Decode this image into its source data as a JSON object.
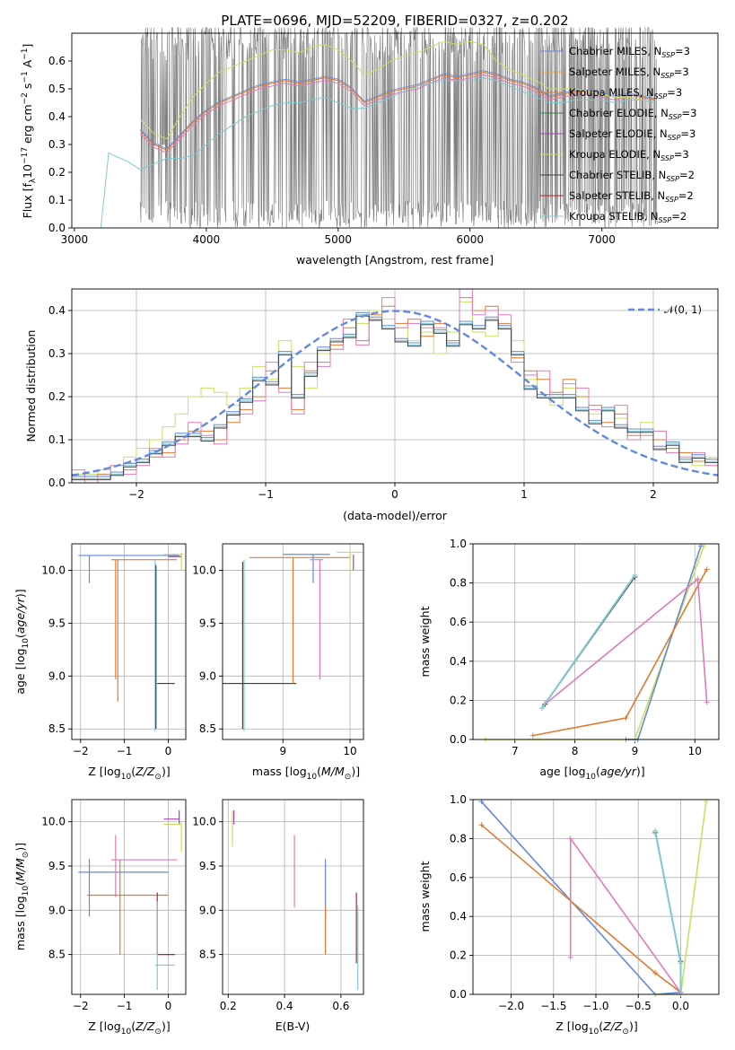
{
  "figure_title": "PLATE=0696, MJD=52209, FIBERID=0327, z=0.202",
  "colors": {
    "Chabrier MILES": "#6488e0",
    "Salpeter MILES": "#e4a030",
    "Kroupa MILES": "#e07a30",
    "Chabrier ELODIE": "#3a8a3a",
    "Salpeter ELODIE": "#a040c0",
    "Kroupa ELODIE": "#c8e060",
    "Chabrier STELIB": "#404040",
    "Salpeter STELIB": "#c02020",
    "Kroupa STELIB": "#80c8d0",
    "Pink": "#e27ab8",
    "data": "#808080"
  },
  "chart_data": [
    {
      "type": "line",
      "title": "PLATE=0696, MJD=52209, FIBERID=0327, z=0.202",
      "xlabel": "wavelength [Angstrom, rest frame]",
      "ylabel": "Flux [f",
      "xlim": [
        2980,
        7880
      ],
      "ylim": [
        0,
        0.7
      ],
      "xticks": [
        "3000",
        "4000",
        "5000",
        "6000",
        "7000"
      ],
      "yticks": [
        "0.0",
        "0.1",
        "0.2",
        "0.3",
        "0.4",
        "0.5",
        "0.6"
      ],
      "legend_position": "top-right",
      "series": [
        {
          "name": "Chabrier MILES, N$_{SSP}$=3",
          "label_main": "Chabrier MILES, N",
          "sub": "SSP",
          "suffix": "=3"
        },
        {
          "name": "Salpeter MILES, N$_{SSP}$=3",
          "label_main": "Salpeter MILES, N",
          "sub": "SSP",
          "suffix": "=3"
        },
        {
          "name": "Kroupa MILES, N$_{SSP}$=3",
          "label_main": "Kroupa MILES, N",
          "sub": "SSP",
          "suffix": "=3"
        },
        {
          "name": "Chabrier ELODIE, N$_{SSP}$=3",
          "label_main": "Chabrier ELODIE, N",
          "sub": "SSP",
          "suffix": "=3"
        },
        {
          "name": "Salpeter ELODIE, N$_{SSP}$=3",
          "label_main": "Salpeter ELODIE, N",
          "sub": "SSP",
          "suffix": "=3"
        },
        {
          "name": "Kroupa ELODIE, N$_{SSP}$=3",
          "label_main": "Kroupa ELODIE, N",
          "sub": "SSP",
          "suffix": "=3"
        },
        {
          "name": "Chabrier STELIB, N$_{SSP}$=2",
          "label_main": "Chabrier STELIB, N",
          "sub": "SSP",
          "suffix": "=2"
        },
        {
          "name": "Salpeter STELIB, N$_{SSP}$=2",
          "label_main": "Salpeter STELIB, N",
          "sub": "SSP",
          "suffix": "=2"
        },
        {
          "name": "Kroupa STELIB, N$_{SSP}$=2",
          "label_main": "Kroupa STELIB, N",
          "sub": "SSP",
          "suffix": "=2"
        }
      ],
      "model_curves": {
        "x": [
          3500,
          3600,
          3700,
          3800,
          3900,
          4000,
          4100,
          4200,
          4300,
          4400,
          4500,
          4600,
          4700,
          4800,
          4900,
          5000,
          5100,
          5200,
          5300,
          5400,
          5500,
          5600,
          5700,
          5800,
          5900,
          6000,
          6100,
          6200,
          6300,
          6400,
          6500,
          6600,
          6700,
          6800,
          6900,
          7000,
          7100,
          7200,
          7300,
          7400
        ],
        "milesish": [
          0.35,
          0.3,
          0.28,
          0.33,
          0.38,
          0.42,
          0.45,
          0.47,
          0.49,
          0.51,
          0.52,
          0.53,
          0.52,
          0.53,
          0.54,
          0.53,
          0.5,
          0.45,
          0.47,
          0.49,
          0.5,
          0.51,
          0.53,
          0.55,
          0.54,
          0.55,
          0.56,
          0.55,
          0.53,
          0.52,
          0.5,
          0.47,
          0.48,
          0.49,
          0.49,
          0.48,
          0.47,
          0.48,
          0.47,
          0.46
        ],
        "kroupa_elodie": [
          0.39,
          0.34,
          0.32,
          0.4,
          0.47,
          0.52,
          0.56,
          0.58,
          0.6,
          0.62,
          0.64,
          0.64,
          0.63,
          0.65,
          0.66,
          0.64,
          0.6,
          0.55,
          0.57,
          0.6,
          0.62,
          0.63,
          0.65,
          0.67,
          0.66,
          0.67,
          0.66,
          0.6,
          0.57,
          0.55,
          0.53,
          0.5,
          0.5,
          0.5,
          0.49,
          0.48,
          0.47,
          0.47,
          0.46,
          0.45
        ],
        "stelib_blue": {
          "x": [
            3200,
            3260,
            3300,
            3400,
            3500,
            3600,
            3700,
            3800,
            3900,
            4000,
            4100,
            4200,
            4300,
            4400,
            4500,
            4600,
            4700,
            4800,
            4900,
            5000,
            5100,
            5200,
            5300,
            5400,
            5500,
            5600,
            5700,
            5800,
            5900,
            6000,
            6100,
            6200,
            6300,
            6400,
            6500,
            6600,
            6700,
            6800,
            6900,
            7000,
            7100,
            7200,
            7300,
            7400
          ],
          "y": [
            0.0,
            0.27,
            0.26,
            0.24,
            0.21,
            0.23,
            0.25,
            0.25,
            0.26,
            0.3,
            0.34,
            0.37,
            0.4,
            0.42,
            0.44,
            0.45,
            0.45,
            0.46,
            0.47,
            0.45,
            0.43,
            0.43,
            0.45,
            0.47,
            0.49,
            0.51,
            0.52,
            0.53,
            0.53,
            0.53,
            0.54,
            0.53,
            0.51,
            0.49,
            0.47,
            0.45,
            0.45,
            0.46,
            0.46,
            0.46,
            0.45,
            0.46,
            0.46,
            0.45
          ]
        }
      }
    },
    {
      "type": "line",
      "xlabel": "(data-model)/error",
      "ylabel": "Normed distribution",
      "xlim": [
        -2.5,
        2.5
      ],
      "ylim": [
        0,
        0.45
      ],
      "xticks": [
        "−2",
        "−1",
        "0",
        "1",
        "2"
      ],
      "yticks": [
        "0.0",
        "0.1",
        "0.2",
        "0.3",
        "0.4"
      ],
      "legend": "𝒩(0, 1)",
      "bin_width": 0.1,
      "hist_a": [
        0.02,
        0.02,
        0.03,
        0.04,
        0.06,
        0.08,
        0.1,
        0.13,
        0.16,
        0.2,
        0.22,
        0.21,
        0.18,
        0.22,
        0.27,
        0.24,
        0.33,
        0.27,
        0.22,
        0.3,
        0.31,
        0.34,
        0.37,
        0.4,
        0.38,
        0.36,
        0.33,
        0.35,
        0.3,
        0.35,
        0.42,
        0.35,
        0.34,
        0.36,
        0.33,
        0.24,
        0.2,
        0.18,
        0.22,
        0.2,
        0.16,
        0.17,
        0.15,
        0.1,
        0.14,
        0.12,
        0.08,
        0.07,
        0.04,
        0.06
      ],
      "hist_b": [
        0.01,
        0.01,
        0.02,
        0.02,
        0.03,
        0.05,
        0.06,
        0.07,
        0.1,
        0.12,
        0.12,
        0.1,
        0.14,
        0.17,
        0.2,
        0.26,
        0.22,
        0.17,
        0.26,
        0.28,
        0.32,
        0.36,
        0.33,
        0.39,
        0.41,
        0.37,
        0.38,
        0.34,
        0.37,
        0.33,
        0.43,
        0.4,
        0.41,
        0.37,
        0.29,
        0.26,
        0.24,
        0.21,
        0.24,
        0.2,
        0.18,
        0.14,
        0.16,
        0.11,
        0.12,
        0.1,
        0.08,
        0.07,
        0.05,
        0.05
      ],
      "hist_c": [
        0.01,
        0.01,
        0.01,
        0.02,
        0.04,
        0.05,
        0.07,
        0.09,
        0.11,
        0.11,
        0.1,
        0.13,
        0.16,
        0.19,
        0.24,
        0.23,
        0.3,
        0.2,
        0.25,
        0.31,
        0.33,
        0.34,
        0.39,
        0.38,
        0.36,
        0.33,
        0.32,
        0.37,
        0.35,
        0.32,
        0.37,
        0.36,
        0.38,
        0.36,
        0.3,
        0.22,
        0.2,
        0.2,
        0.2,
        0.17,
        0.14,
        0.17,
        0.13,
        0.12,
        0.12,
        0.08,
        0.09,
        0.05,
        0.06,
        0.05
      ]
    },
    {
      "type": "scatter",
      "xlabel": "Z [log",
      "ylabel": "age  [log",
      "xlim": [
        -2.2,
        0.4
      ],
      "ylim": [
        8.4,
        10.25
      ],
      "xticks": [
        "−2",
        "−1",
        "0"
      ],
      "yticks": [
        "8.5",
        "9.0",
        "9.5",
        "10.0"
      ]
    },
    {
      "type": "scatter",
      "xlabel": "mass [log",
      "xlim": [
        8.1,
        10.2
      ],
      "ylim": [
        8.4,
        10.25
      ],
      "xticks": [
        "9",
        "10"
      ],
      "yticks": [
        "8.5",
        "9.0",
        "9.5",
        "10.0"
      ]
    },
    {
      "type": "line",
      "xlabel": "age  [log",
      "ylabel": "mass weight",
      "xlim": [
        6.3,
        10.4
      ],
      "ylim": [
        0,
        1
      ],
      "xticks": [
        "7",
        "8",
        "9",
        "10"
      ],
      "yticks": [
        "0.0",
        "0.2",
        "0.4",
        "0.6",
        "0.8",
        "1.0"
      ]
    },
    {
      "type": "scatter",
      "xlabel": "Z [log",
      "ylabel": "mass [log",
      "xlim": [
        -2.2,
        0.4
      ],
      "ylim": [
        8.05,
        10.25
      ],
      "xticks": [
        "−2",
        "−1",
        "0"
      ],
      "yticks": [
        "8.5",
        "9.0",
        "9.5",
        "10.0"
      ]
    },
    {
      "type": "scatter",
      "xlabel": "E(B-V)",
      "xlim": [
        0.18,
        0.68
      ],
      "ylim": [
        8.05,
        10.25
      ],
      "xticks": [
        "0.2",
        "0.4",
        "0.6"
      ],
      "yticks": [
        "8.5",
        "9.0",
        "9.5",
        "10.0"
      ]
    },
    {
      "type": "line",
      "xlabel": "Z [log",
      "ylabel": "mass weight",
      "xlim": [
        -2.45,
        0.45
      ],
      "ylim": [
        0,
        1
      ],
      "xticks": [
        "−2.0",
        "−1.5",
        "−1.0",
        "−0.5",
        "0.0"
      ],
      "yticks": [
        "0.0",
        "0.2",
        "0.4",
        "0.6",
        "0.8",
        "1.0"
      ]
    }
  ]
}
